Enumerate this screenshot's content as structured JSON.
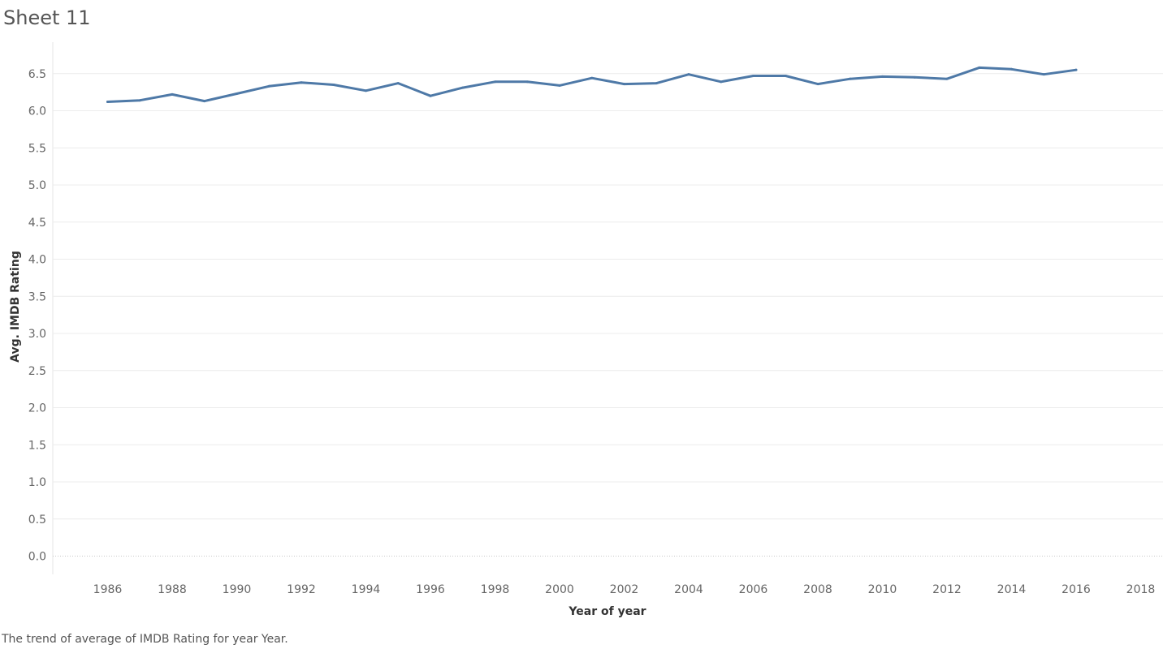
{
  "sheet": {
    "title": "Sheet 11"
  },
  "caption": "The trend of average of IMDB Rating for year Year.",
  "colors": {
    "line": "#4e79a7",
    "grid": "#ececec",
    "zero_line": "#c8c8c8",
    "axis": "#e6e6e6"
  },
  "chart_data": {
    "type": "line",
    "title": "Sheet 11",
    "xlabel": "Year of year",
    "ylabel": "Avg. IMDB Rating",
    "xlim": [
      1984.5,
      1979.5
    ],
    "ylim": [
      -0.25,
      6.9
    ],
    "x_ticks": [
      1986,
      1988,
      1990,
      1992,
      1994,
      1996,
      1998,
      2000,
      2002,
      2004,
      2006,
      2008,
      2010,
      2012,
      2014,
      2016,
      2018
    ],
    "y_ticks": [
      "0.0",
      "0.5",
      "1.0",
      "1.5",
      "2.0",
      "2.5",
      "3.0",
      "3.5",
      "4.0",
      "4.5",
      "5.0",
      "5.5",
      "6.0",
      "6.5"
    ],
    "grid": true,
    "series": [
      {
        "x": [
          1986,
          1987,
          1988,
          1989,
          1990,
          1991,
          1992,
          1993,
          1994,
          1995,
          1996,
          1997,
          1998,
          1999,
          2000,
          2001,
          2002,
          2003,
          2004,
          2005,
          2006,
          2007,
          2008,
          2009,
          2010,
          2011,
          2012,
          2013,
          2014,
          2015,
          2016
        ],
        "values": [
          6.12,
          6.14,
          6.22,
          6.13,
          6.23,
          6.33,
          6.38,
          6.35,
          6.27,
          6.37,
          6.2,
          6.31,
          6.39,
          6.39,
          6.34,
          6.44,
          6.36,
          6.37,
          6.49,
          6.39,
          6.47,
          6.47,
          6.36,
          6.43,
          6.46,
          6.45,
          6.43,
          6.58,
          6.56,
          6.49,
          6.55
        ]
      }
    ]
  }
}
